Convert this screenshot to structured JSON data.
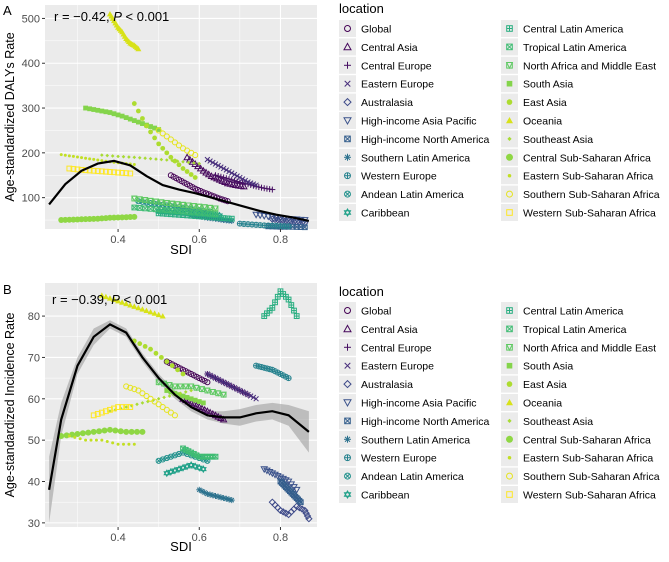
{
  "chart_data": [
    {
      "panel": "A",
      "type": "scatter",
      "stat_text": "r = −0.42, ",
      "p_label": "P",
      "p_text": " < 0.001",
      "xlabel": "SDI",
      "ylabel": "Age-standardized  DALYs Rate",
      "xlim": [
        0.22,
        0.89
      ],
      "ylim": [
        30,
        530
      ],
      "x_ticks": [
        0.4,
        0.6,
        0.8
      ],
      "x_tick_labels": [
        "0.4",
        "0.6",
        "0.8"
      ],
      "y_ticks": [
        100,
        200,
        300,
        400,
        500
      ],
      "y_tick_labels": [
        "100",
        "200",
        "300",
        "400",
        "500"
      ],
      "trend": {
        "x": [
          0.23,
          0.27,
          0.31,
          0.35,
          0.39,
          0.43,
          0.47,
          0.51,
          0.55,
          0.59,
          0.63,
          0.67,
          0.71,
          0.75,
          0.79,
          0.83,
          0.87
        ],
        "y": [
          85,
          130,
          160,
          176,
          182,
          172,
          148,
          128,
          118,
          110,
          100,
          90,
          80,
          70,
          62,
          56,
          48
        ]
      },
      "series": [
        {
          "name": "Global",
          "x": [
            0.53,
            0.55,
            0.57,
            0.59,
            0.61,
            0.63,
            0.65,
            0.67
          ],
          "y": [
            150,
            140,
            130,
            120,
            112,
            105,
            98,
            92
          ]
        },
        {
          "name": "Central Asia",
          "x": [
            0.57,
            0.59,
            0.61,
            0.63,
            0.65,
            0.67,
            0.69,
            0.71
          ],
          "y": [
            190,
            175,
            160,
            148,
            140,
            132,
            128,
            125
          ]
        },
        {
          "name": "Central Europe",
          "x": [
            0.64,
            0.66,
            0.68,
            0.7,
            0.72,
            0.74,
            0.76,
            0.78
          ],
          "y": [
            150,
            145,
            140,
            134,
            130,
            125,
            121,
            118
          ]
        },
        {
          "name": "Eastern Europe",
          "x": [
            0.62,
            0.64,
            0.66,
            0.68,
            0.7,
            0.72,
            0.74
          ],
          "y": [
            185,
            175,
            165,
            155,
            145,
            135,
            128
          ]
        },
        {
          "name": "Australasia",
          "x": [
            0.78,
            0.8,
            0.82,
            0.84,
            0.86
          ],
          "y": [
            52,
            50,
            48,
            46,
            44
          ]
        },
        {
          "name": "High-income Asia Pacific",
          "x": [
            0.74,
            0.77,
            0.8,
            0.83,
            0.86
          ],
          "y": [
            62,
            58,
            54,
            52,
            50
          ]
        },
        {
          "name": "High-income North America",
          "x": [
            0.77,
            0.8,
            0.83,
            0.86
          ],
          "y": [
            36,
            35,
            35,
            34
          ]
        },
        {
          "name": "Southern Latin America",
          "x": [
            0.58,
            0.6,
            0.62,
            0.64,
            0.66,
            0.68
          ],
          "y": [
            60,
            58,
            55,
            53,
            50,
            48
          ]
        },
        {
          "name": "Western Europe",
          "x": [
            0.7,
            0.73,
            0.76,
            0.79,
            0.82
          ],
          "y": [
            42,
            40,
            38,
            37,
            36
          ]
        },
        {
          "name": "Andean Latin America",
          "x": [
            0.45,
            0.48,
            0.51,
            0.54,
            0.57,
            0.6,
            0.63
          ],
          "y": [
            92,
            88,
            84,
            80,
            76,
            72,
            68
          ]
        },
        {
          "name": "Caribbean",
          "x": [
            0.5,
            0.53,
            0.56,
            0.59,
            0.62,
            0.65
          ],
          "y": [
            70,
            68,
            66,
            64,
            62,
            60
          ]
        },
        {
          "name": "Central Latin America",
          "x": [
            0.5,
            0.53,
            0.56,
            0.59,
            0.62,
            0.65,
            0.68
          ],
          "y": [
            65,
            63,
            61,
            59,
            57,
            55,
            53
          ]
        },
        {
          "name": "Tropical Latin America",
          "x": [
            0.44,
            0.48,
            0.52,
            0.56,
            0.6,
            0.64
          ],
          "y": [
            78,
            75,
            72,
            69,
            66,
            63
          ]
        },
        {
          "name": "North Africa and Middle East",
          "x": [
            0.44,
            0.48,
            0.52,
            0.56,
            0.6,
            0.64
          ],
          "y": [
            98,
            93,
            88,
            84,
            80,
            76
          ]
        },
        {
          "name": "South Asia",
          "x": [
            0.32,
            0.35,
            0.38,
            0.41,
            0.44,
            0.47,
            0.5
          ],
          "y": [
            300,
            295,
            290,
            282,
            272,
            262,
            252
          ]
        },
        {
          "name": "East Asia",
          "x": [
            0.44,
            0.47,
            0.5,
            0.53,
            0.56,
            0.59
          ],
          "y": [
            310,
            260,
            220,
            190,
            165,
            145
          ]
        },
        {
          "name": "Oceania",
          "x": [
            0.38,
            0.39,
            0.4,
            0.41,
            0.42,
            0.43,
            0.44,
            0.45
          ],
          "y": [
            510,
            495,
            480,
            470,
            455,
            445,
            440,
            432
          ]
        },
        {
          "name": "Southeast Asia",
          "x": [
            0.36,
            0.4,
            0.44,
            0.48,
            0.52,
            0.56,
            0.6
          ],
          "y": [
            195,
            192,
            190,
            187,
            184,
            180,
            176
          ]
        },
        {
          "name": "Central Sub-Saharan Africa",
          "x": [
            0.26,
            0.29,
            0.32,
            0.35,
            0.38,
            0.41,
            0.44
          ],
          "y": [
            50,
            51,
            52,
            53,
            55,
            56,
            57
          ]
        },
        {
          "name": "Eastern Sub-Saharan Africa",
          "x": [
            0.26,
            0.29,
            0.32,
            0.35,
            0.38,
            0.41,
            0.44
          ],
          "y": [
            196,
            192,
            188,
            184,
            180,
            177,
            174
          ]
        },
        {
          "name": "Southern Sub-Saharan Africa",
          "x": [
            0.5,
            0.53,
            0.56,
            0.59
          ],
          "y": [
            250,
            230,
            210,
            195
          ]
        },
        {
          "name": "Western Sub-Saharan Africa",
          "x": [
            0.28,
            0.31,
            0.34,
            0.37,
            0.4,
            0.43
          ],
          "y": [
            165,
            162,
            160,
            158,
            156,
            154
          ]
        }
      ]
    },
    {
      "panel": "B",
      "type": "scatter",
      "stat_text": "r = −0.39, ",
      "p_label": "P",
      "p_text": " < 0.001",
      "xlabel": "SDI",
      "ylabel": "Age-standardized Incidence Rate",
      "xlim": [
        0.22,
        0.89
      ],
      "ylim": [
        29,
        88
      ],
      "x_ticks": [
        0.4,
        0.6,
        0.8
      ],
      "x_tick_labels": [
        "0.4",
        "0.6",
        "0.8"
      ],
      "y_ticks": [
        30,
        40,
        50,
        60,
        70,
        80
      ],
      "y_tick_labels": [
        "30",
        "40",
        "50",
        "60",
        "70",
        "80"
      ],
      "trend": {
        "x": [
          0.23,
          0.26,
          0.3,
          0.34,
          0.38,
          0.42,
          0.46,
          0.5,
          0.54,
          0.58,
          0.62,
          0.66,
          0.7,
          0.74,
          0.78,
          0.82,
          0.87
        ],
        "y": [
          38,
          55,
          68,
          75,
          78,
          76,
          70,
          65,
          61,
          58,
          56,
          55.5,
          55.5,
          56.5,
          57,
          56,
          52
        ]
      },
      "band_upper": [
        46,
        59,
        70,
        77,
        79,
        77,
        71,
        66,
        62,
        59,
        57,
        57,
        57.5,
        58.5,
        59,
        58.5,
        57
      ],
      "band_lower": [
        30,
        51,
        66,
        73,
        77,
        75,
        69,
        64,
        60,
        57,
        55,
        54,
        53.5,
        54.5,
        55,
        53.5,
        47
      ],
      "series": [
        {
          "name": "Global",
          "x": [
            0.52,
            0.54,
            0.56,
            0.58,
            0.6,
            0.62
          ],
          "y": [
            69,
            68,
            67,
            66,
            65,
            64
          ]
        },
        {
          "name": "Central Asia",
          "x": [
            0.56,
            0.58,
            0.6,
            0.62,
            0.64,
            0.66
          ],
          "y": [
            60,
            59,
            58,
            57,
            56,
            55
          ]
        },
        {
          "name": "Central Europe",
          "x": [
            0.62,
            0.64,
            0.66,
            0.68,
            0.7,
            0.72
          ],
          "y": [
            66,
            65,
            64,
            63,
            62,
            61
          ]
        },
        {
          "name": "Eastern Europe",
          "x": [
            0.62,
            0.64,
            0.66,
            0.68,
            0.7,
            0.72,
            0.74
          ],
          "y": [
            66,
            65,
            64,
            63,
            62,
            61,
            60
          ]
        },
        {
          "name": "Australasia",
          "x": [
            0.78,
            0.8,
            0.82,
            0.84,
            0.86,
            0.87
          ],
          "y": [
            35,
            33,
            32,
            34,
            33,
            31
          ]
        },
        {
          "name": "High-income Asia Pacific",
          "x": [
            0.76,
            0.78,
            0.8,
            0.82,
            0.84
          ],
          "y": [
            43,
            42,
            41,
            40,
            38
          ]
        },
        {
          "name": "High-income North America",
          "x": [
            0.8,
            0.81,
            0.82,
            0.83,
            0.84,
            0.85
          ],
          "y": [
            40,
            39,
            38,
            37,
            36,
            35
          ]
        },
        {
          "name": "Southern Latin America",
          "x": [
            0.6,
            0.62,
            0.64,
            0.66,
            0.68
          ],
          "y": [
            38,
            37,
            36.5,
            36,
            35.5
          ]
        },
        {
          "name": "Western Europe",
          "x": [
            0.74,
            0.76,
            0.78,
            0.8,
            0.82
          ],
          "y": [
            68,
            67.5,
            67,
            66,
            65
          ]
        },
        {
          "name": "Andean Latin America",
          "x": [
            0.5,
            0.53,
            0.56,
            0.59,
            0.62
          ],
          "y": [
            45,
            46,
            47,
            46,
            45
          ]
        },
        {
          "name": "Caribbean",
          "x": [
            0.52,
            0.55,
            0.58,
            0.61
          ],
          "y": [
            42,
            43,
            44,
            43
          ]
        },
        {
          "name": "Central Latin America",
          "x": [
            0.76,
            0.78,
            0.8,
            0.82,
            0.84
          ],
          "y": [
            80,
            82,
            86,
            84,
            80
          ]
        },
        {
          "name": "Tropical Latin America",
          "x": [
            0.56,
            0.58,
            0.6,
            0.62,
            0.64
          ],
          "y": [
            48,
            47,
            46,
            46,
            46
          ]
        },
        {
          "name": "North Africa and Middle East",
          "x": [
            0.5,
            0.54,
            0.58,
            0.62,
            0.66
          ],
          "y": [
            64,
            63,
            63,
            62,
            61
          ]
        },
        {
          "name": "South Asia",
          "x": [
            0.52,
            0.55,
            0.58,
            0.61
          ],
          "y": [
            62,
            61,
            60,
            59
          ]
        },
        {
          "name": "East Asia",
          "x": [
            0.44,
            0.48,
            0.52,
            0.56
          ],
          "y": [
            74,
            72,
            69,
            66
          ]
        },
        {
          "name": "Oceania",
          "x": [
            0.36,
            0.39,
            0.42,
            0.45,
            0.48,
            0.51
          ],
          "y": [
            85,
            84,
            83,
            82,
            81,
            80
          ]
        },
        {
          "name": "Southeast Asia",
          "x": [
            0.38,
            0.42,
            0.46,
            0.5,
            0.54,
            0.58
          ],
          "y": [
            57,
            58,
            59,
            60,
            61,
            62
          ]
        },
        {
          "name": "Central Sub-Saharan Africa",
          "x": [
            0.26,
            0.3,
            0.34,
            0.38,
            0.42,
            0.46
          ],
          "y": [
            51,
            51.5,
            52,
            52.5,
            52,
            52
          ]
        },
        {
          "name": "Eastern Sub-Saharan Africa",
          "x": [
            0.28,
            0.32,
            0.36,
            0.4,
            0.44
          ],
          "y": [
            51,
            50,
            50,
            49,
            49
          ]
        },
        {
          "name": "Southern Sub-Saharan Africa",
          "x": [
            0.42,
            0.45,
            0.48,
            0.51,
            0.54
          ],
          "y": [
            63,
            62,
            60,
            58,
            56
          ]
        },
        {
          "name": "Western Sub-Saharan Africa",
          "x": [
            0.34,
            0.37,
            0.4,
            0.43
          ],
          "y": [
            56,
            57,
            58,
            58
          ]
        }
      ]
    }
  ],
  "panel_tags": [
    "A",
    "B"
  ],
  "legend": {
    "title": "location",
    "items": [
      {
        "name": "Global",
        "color": "#440154",
        "shape": "circle-open"
      },
      {
        "name": "Central Asia",
        "color": "#46085c",
        "shape": "triangle-open"
      },
      {
        "name": "Central Europe",
        "color": "#471063",
        "shape": "plus"
      },
      {
        "name": "Eastern Europe",
        "color": "#472d7b",
        "shape": "cross"
      },
      {
        "name": "Australasia",
        "color": "#3e4a89",
        "shape": "diamond-open"
      },
      {
        "name": "High-income Asia Pacific",
        "color": "#3b528b",
        "shape": "triangle-down-open"
      },
      {
        "name": "High-income North America",
        "color": "#355f8d",
        "shape": "square-cross"
      },
      {
        "name": "Southern Latin America",
        "color": "#2c728e",
        "shape": "asterisk"
      },
      {
        "name": "Western Europe",
        "color": "#26828e",
        "shape": "circle-plus"
      },
      {
        "name": "Andean Latin America",
        "color": "#21918c",
        "shape": "circle-cross"
      },
      {
        "name": "Caribbean",
        "color": "#1fa088",
        "shape": "star-david"
      },
      {
        "name": "Central Latin America",
        "color": "#28ae80",
        "shape": "square-plus"
      },
      {
        "name": "Tropical Latin America",
        "color": "#3fbc73",
        "shape": "square-cross"
      },
      {
        "name": "North Africa and Middle East",
        "color": "#5ec962",
        "shape": "square-triangle"
      },
      {
        "name": "South Asia",
        "color": "#84d44b",
        "shape": "square"
      },
      {
        "name": "East Asia",
        "color": "#addc30",
        "shape": "circle"
      },
      {
        "name": "Oceania",
        "color": "#d8e219",
        "shape": "triangle"
      },
      {
        "name": "Southeast Asia",
        "color": "#a8db34",
        "shape": "diamond-small"
      },
      {
        "name": "Central Sub-Saharan Africa",
        "color": "#8fd744",
        "shape": "circle-big"
      },
      {
        "name": "Eastern Sub-Saharan Africa",
        "color": "#c2df23",
        "shape": "dot"
      },
      {
        "name": "Southern Sub-Saharan Africa",
        "color": "#e5e419",
        "shape": "circle-open"
      },
      {
        "name": "Western Sub-Saharan Africa",
        "color": "#fde725",
        "shape": "square-open"
      }
    ]
  },
  "colors": {
    "panel_bg": "#ebebeb",
    "grid": "#ffffff",
    "trend": "#000000",
    "band": "#9e9e9e"
  }
}
